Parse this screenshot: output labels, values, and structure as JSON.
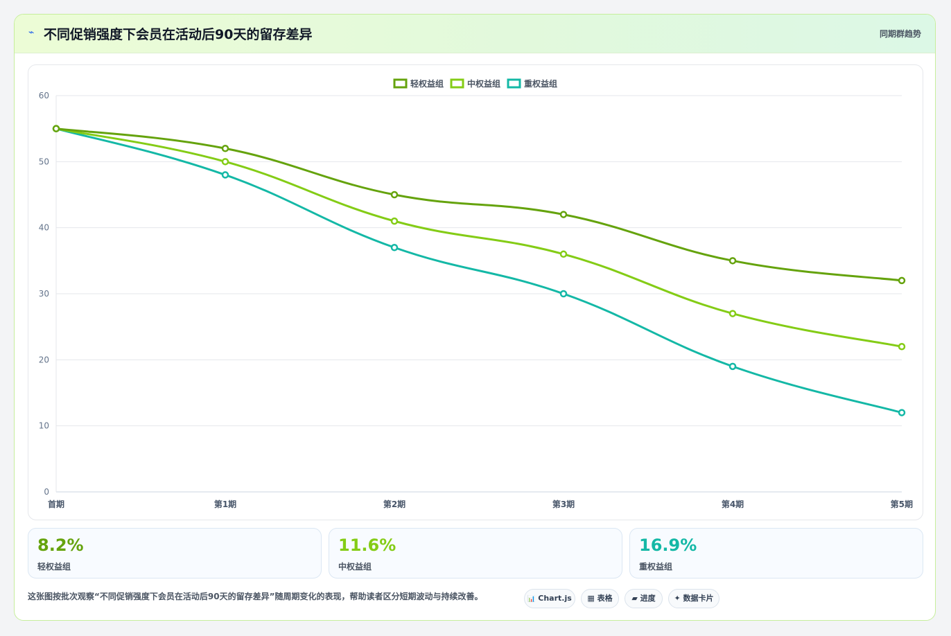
{
  "header": {
    "icon": "lightning-icon",
    "title": "不同促销强度下会员在活动后90天的留存差异",
    "right_label": "同期群趋势"
  },
  "chart_data": {
    "type": "line",
    "categories": [
      "首期",
      "第1期",
      "第2期",
      "第3期",
      "第4期",
      "第5期"
    ],
    "series": [
      {
        "name": "轻权益组",
        "color": "#65a30d",
        "values": [
          55,
          52,
          45,
          42,
          35,
          32
        ]
      },
      {
        "name": "中权益组",
        "color": "#84cc16",
        "values": [
          55,
          50,
          41,
          36,
          27,
          22
        ]
      },
      {
        "name": "重权益组",
        "color": "#14b8a6",
        "values": [
          55,
          48,
          37,
          30,
          19,
          12
        ]
      }
    ],
    "yticks": [
      "0",
      "10",
      "20",
      "30",
      "40",
      "50",
      "60"
    ],
    "ylim": [
      0,
      60
    ],
    "grid": true,
    "legend_position": "top-center",
    "curve": "smooth"
  },
  "stats": [
    {
      "value": "8.2%",
      "label": "轻权益组",
      "color": "#65a30d"
    },
    {
      "value": "11.6%",
      "label": "中权益组",
      "color": "#84cc16"
    },
    {
      "value": "16.9%",
      "label": "重权益组",
      "color": "#14b8a6"
    }
  ],
  "footer": {
    "description": "这张图按批次观察“不同促销强度下会员在活动后90天的留存差异”随周期变化的表现，帮助读者区分短期波动与持续改善。",
    "pills": [
      {
        "icon": "📊",
        "label": "Chart.js"
      },
      {
        "icon": "▦",
        "label": "表格"
      },
      {
        "icon": "▰",
        "label": "进度"
      },
      {
        "icon": "✦",
        "label": "数据卡片"
      }
    ]
  }
}
